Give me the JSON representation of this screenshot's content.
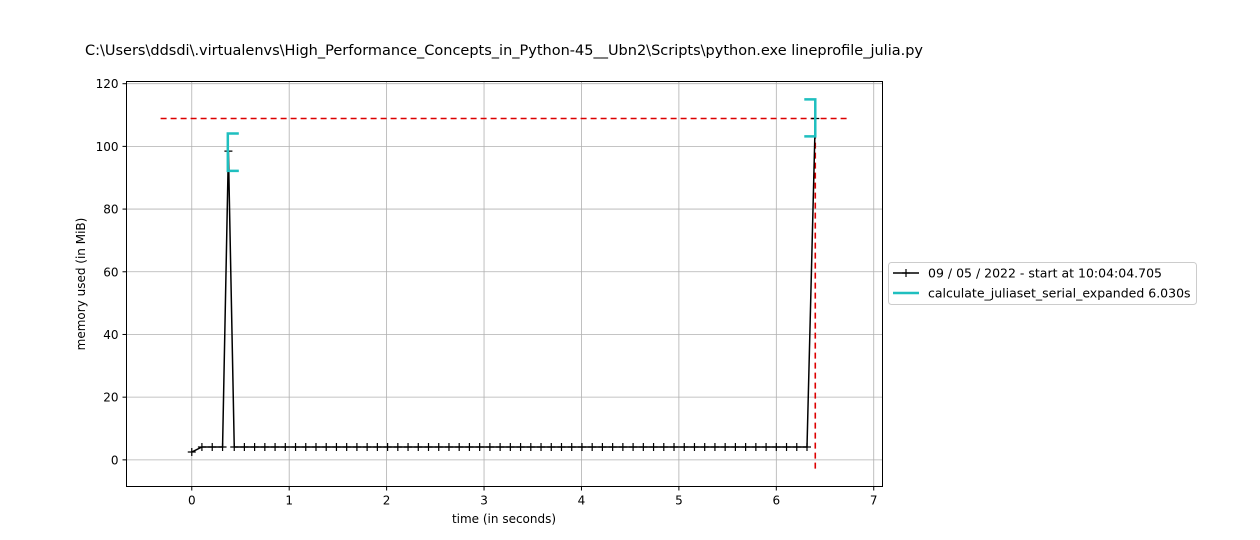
{
  "chart_data": {
    "type": "line",
    "title": "C:\\Users\\ddsdi\\.virtualenvs\\High_Performance_Concepts_in_Python-45__Ubn2\\Scripts\\python.exe lineprofile_julia.py",
    "xlabel": "time (in seconds)",
    "ylabel": "memory used (in MiB)",
    "xlim": [
      -0.67,
      7.09
    ],
    "ylim": [
      -8.5,
      120.7
    ],
    "xticks": [
      0,
      1,
      2,
      3,
      4,
      5,
      6,
      7
    ],
    "yticks": [
      0,
      20,
      40,
      60,
      80,
      100,
      120
    ],
    "grid": true,
    "legend_position": "center-right outside",
    "series": [
      {
        "name": "09 / 05 / 2022 - start at 10:04:04.705",
        "color": "#000000",
        "marker": "+",
        "x": [
          0.0,
          0.104,
          0.21,
          0.316,
          0.376,
          0.436,
          0.54,
          0.645,
          0.75,
          0.855,
          0.96,
          1.065,
          1.17,
          1.275,
          1.38,
          1.485,
          1.59,
          1.695,
          1.8,
          1.905,
          2.01,
          2.115,
          2.22,
          2.325,
          2.43,
          2.535,
          2.64,
          2.745,
          2.85,
          2.955,
          3.06,
          3.165,
          3.27,
          3.375,
          3.48,
          3.585,
          3.69,
          3.795,
          3.9,
          4.005,
          4.11,
          4.215,
          4.32,
          4.425,
          4.53,
          4.635,
          4.74,
          4.845,
          4.95,
          5.055,
          5.16,
          5.265,
          5.37,
          5.475,
          5.58,
          5.685,
          5.79,
          5.895,
          6.0,
          6.105,
          6.21,
          6.315,
          6.4
        ],
        "y": [
          2.5,
          4.1,
          4.1,
          4.1,
          98.5,
          4.1,
          4.1,
          4.1,
          4.1,
          4.1,
          4.1,
          4.1,
          4.1,
          4.1,
          4.1,
          4.1,
          4.1,
          4.1,
          4.1,
          4.1,
          4.1,
          4.1,
          4.1,
          4.1,
          4.1,
          4.1,
          4.1,
          4.1,
          4.1,
          4.1,
          4.1,
          4.1,
          4.1,
          4.1,
          4.1,
          4.1,
          4.1,
          4.1,
          4.1,
          4.1,
          4.1,
          4.1,
          4.1,
          4.1,
          4.1,
          4.1,
          4.1,
          4.1,
          4.1,
          4.1,
          4.1,
          4.1,
          4.1,
          4.1,
          4.1,
          4.1,
          4.1,
          4.1,
          4.1,
          4.1,
          4.1,
          4.1,
          108.9
        ]
      },
      {
        "name": "calculate_juliaset_serial_expanded 6.030s",
        "color": "#1fbfbf",
        "brackets": [
          {
            "x": 0.37,
            "y_low": 92.2,
            "y_high": 104.1,
            "open": "right"
          },
          {
            "x": 6.4,
            "y_low": 103.2,
            "y_high": 115.0,
            "open": "left"
          }
        ]
      }
    ],
    "reference_lines": [
      {
        "orientation": "horizontal",
        "value": 108.9,
        "x_from": -0.32,
        "x_to": 6.73,
        "color": "#dd0000",
        "style": "dashed"
      },
      {
        "orientation": "vertical",
        "value": 6.4,
        "y_from": -2.8,
        "y_to": 108.9,
        "color": "#dd0000",
        "style": "dashed"
      }
    ]
  }
}
